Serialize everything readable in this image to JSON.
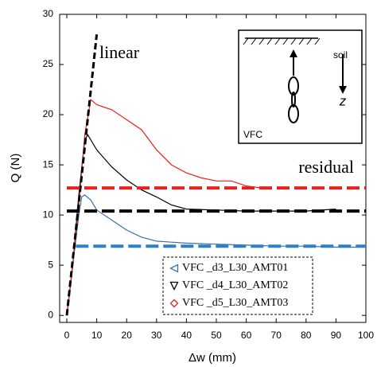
{
  "chart_data": {
    "type": "line",
    "x_label": "Δw (mm)",
    "y_label": "Q (N)",
    "xlim": [
      -2.4,
      100
    ],
    "ylim": [
      -0.7,
      30
    ],
    "xticks": [
      0,
      10,
      20,
      30,
      40,
      50,
      60,
      70,
      80,
      90,
      100
    ],
    "yticks": [
      0,
      5,
      10,
      15,
      20,
      25,
      30
    ],
    "grid": false,
    "legend": "lower center",
    "series": [
      {
        "name": "VFC _d3_L30_AMT01",
        "color": "#3c6fa8",
        "marker": "triangle-left",
        "x": [
          0,
          2,
          4,
          5,
          6,
          8,
          10,
          15,
          20,
          25,
          30,
          35,
          40,
          50,
          60,
          70,
          80,
          90,
          97
        ],
        "values": [
          0,
          5,
          10,
          11.8,
          12,
          11.5,
          10.5,
          9.5,
          8.5,
          7.8,
          7.4,
          7.3,
          7.2,
          7.1,
          7.0,
          6.9,
          6.9,
          6.8,
          6.8
        ]
      },
      {
        "name": "VFC _d4_L30_AMT02",
        "color": "#000000",
        "marker": "triangle-down",
        "x": [
          0,
          2,
          4,
          6,
          7,
          10,
          15,
          20,
          25,
          30,
          35,
          40,
          50,
          60,
          70,
          80,
          90
        ],
        "values": [
          0,
          5,
          12,
          17.5,
          18,
          16.5,
          14.8,
          13.5,
          12.5,
          11.8,
          11,
          10.6,
          10.5,
          10.4,
          10.4,
          10.4,
          10.6
        ]
      },
      {
        "name": "VFC _d5_L30_AMT03",
        "color": "#e8211c",
        "marker": "diamond",
        "x": [
          0,
          2,
          4,
          6,
          8,
          10,
          15,
          20,
          25,
          30,
          35,
          40,
          45,
          50,
          55,
          60,
          65
        ],
        "values": [
          0,
          5,
          11,
          18,
          21.5,
          21,
          20.5,
          19.5,
          18.5,
          16.5,
          15,
          14.2,
          13.7,
          13.4,
          13.4,
          12.9,
          12.7
        ]
      }
    ],
    "reference_lines": [
      {
        "color": "#000000",
        "x": [
          0,
          10
        ],
        "values": [
          0,
          28
        ]
      },
      {
        "color": "#e8211c",
        "x": [
          0,
          100
        ],
        "values": [
          12.7,
          12.7
        ]
      },
      {
        "color": "#000000",
        "x": [
          0,
          100
        ],
        "values": [
          10.4,
          10.4
        ]
      },
      {
        "color": "#2a7fd0",
        "x": [
          3,
          100
        ],
        "values": [
          6.9,
          6.9
        ]
      }
    ],
    "annotations": [
      "linear",
      "residual"
    ],
    "inset_labels": {
      "soil": "soil",
      "depth": "z",
      "name": "VFC"
    }
  }
}
